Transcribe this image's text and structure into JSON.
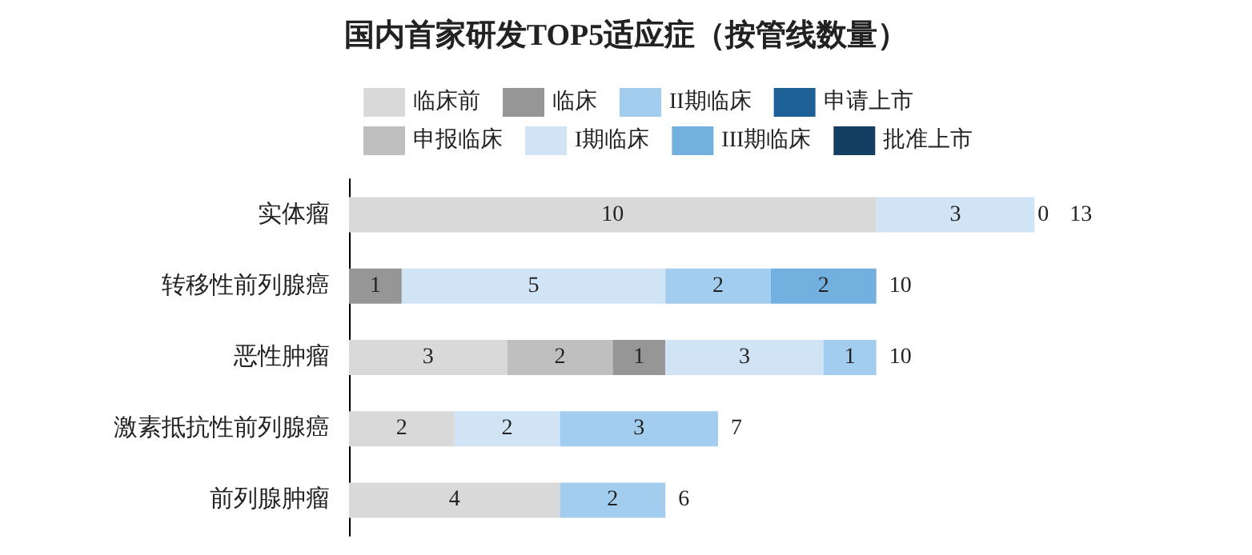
{
  "chart_data": {
    "type": "bar",
    "orientation": "horizontal",
    "stacked": true,
    "title": "国内首家研发TOP5适应症（按管线数量）",
    "categories": [
      "实体瘤",
      "转移性前列腺癌",
      "恶性肿瘤",
      "激素抵抗性前列腺癌",
      "前列腺肿瘤"
    ],
    "series": [
      {
        "name": "临床前",
        "color": "#d9d9d9",
        "values": [
          10,
          null,
          3,
          2,
          4
        ]
      },
      {
        "name": "申报临床",
        "color": "#bfbfbf",
        "values": [
          null,
          null,
          2,
          null,
          null
        ]
      },
      {
        "name": "临床",
        "color": "#969696",
        "values": [
          null,
          1,
          1,
          null,
          null
        ]
      },
      {
        "name": "I期临床",
        "color": "#d0e4f5",
        "values": [
          3,
          5,
          3,
          2,
          null
        ]
      },
      {
        "name": "II期临床",
        "color": "#a3cdee",
        "values": [
          0,
          2,
          1,
          3,
          2
        ]
      },
      {
        "name": "III期临床",
        "color": "#72b0e0",
        "values": [
          null,
          2,
          null,
          null,
          null
        ]
      },
      {
        "name": "申请上市",
        "color": "#1c6096",
        "values": [
          null,
          null,
          null,
          null,
          null
        ]
      },
      {
        "name": "批准上市",
        "color": "#153f62",
        "values": [
          null,
          null,
          null,
          null,
          null
        ]
      }
    ],
    "data_labels": true,
    "totals": [
      "13",
      "10",
      "10",
      "7",
      "6"
    ],
    "legend": "top"
  }
}
